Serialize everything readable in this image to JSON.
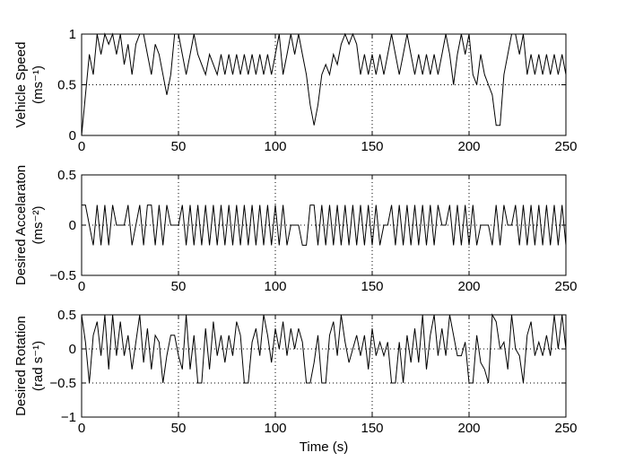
{
  "chart_data": [
    {
      "type": "line",
      "ylabel": [
        "Vehicle Speed",
        "(ms⁻¹)"
      ],
      "xlabel": "",
      "xlim": [
        0,
        250
      ],
      "ylim": [
        0,
        1
      ],
      "xticks": [
        0,
        50,
        100,
        150,
        200,
        250
      ],
      "yticks": [
        0,
        0.5,
        1
      ],
      "ytick_labels": [
        "0",
        "0.5",
        "1"
      ],
      "grid": true,
      "series": [
        {
          "x": [
            0,
            2,
            4,
            6,
            8,
            10,
            12,
            14,
            16,
            18,
            20,
            22,
            24,
            26,
            28,
            30,
            32,
            34,
            36,
            38,
            40,
            42,
            44,
            46,
            48,
            50,
            52,
            54,
            56,
            58,
            60,
            62,
            64,
            66,
            68,
            70,
            72,
            74,
            76,
            78,
            80,
            82,
            84,
            86,
            88,
            90,
            92,
            94,
            96,
            98,
            100,
            102,
            104,
            106,
            108,
            110,
            112,
            114,
            116,
            118,
            120,
            122,
            124,
            126,
            128,
            130,
            132,
            134,
            136,
            138,
            140,
            142,
            144,
            146,
            148,
            150,
            152,
            154,
            156,
            158,
            160,
            162,
            164,
            166,
            168,
            170,
            172,
            174,
            176,
            178,
            180,
            182,
            184,
            186,
            188,
            190,
            192,
            194,
            196,
            198,
            200,
            202,
            204,
            206,
            208,
            210,
            212,
            214,
            216,
            218,
            220,
            222,
            224,
            226,
            228,
            230,
            232,
            234,
            236,
            238,
            240,
            242,
            244,
            246,
            248,
            250
          ],
          "y": [
            0,
            0.4,
            0.8,
            0.6,
            1,
            0.8,
            1,
            0.9,
            1,
            0.8,
            1,
            0.7,
            0.9,
            0.6,
            0.9,
            1,
            1,
            0.8,
            0.6,
            0.9,
            0.8,
            0.6,
            0.4,
            0.6,
            1,
            1,
            0.8,
            0.6,
            0.8,
            1,
            0.8,
            0.7,
            0.6,
            0.8,
            0.7,
            0.6,
            0.8,
            0.6,
            0.8,
            0.6,
            0.8,
            0.6,
            0.8,
            0.6,
            0.8,
            0.6,
            0.8,
            0.6,
            0.8,
            0.6,
            0.8,
            1,
            0.6,
            0.8,
            1,
            0.8,
            1,
            0.8,
            0.6,
            0.3,
            0.1,
            0.3,
            0.6,
            0.7,
            0.6,
            0.8,
            0.7,
            0.9,
            1,
            0.9,
            1,
            0.9,
            0.6,
            0.8,
            0.6,
            0.8,
            0.6,
            0.8,
            0.6,
            0.8,
            1,
            0.8,
            0.6,
            0.8,
            1,
            0.8,
            0.6,
            0.8,
            0.6,
            0.8,
            0.6,
            0.8,
            0.6,
            0.8,
            1,
            0.8,
            0.5,
            0.8,
            1,
            0.8,
            1,
            0.6,
            0.5,
            0.8,
            0.6,
            0.5,
            0.4,
            0.1,
            0.1,
            0.6,
            0.8,
            1,
            1,
            0.8,
            1,
            0.6,
            0.8,
            0.6,
            0.8,
            0.6,
            0.8,
            0.6,
            0.8,
            0.6,
            0.8,
            0.6
          ]
        }
      ]
    },
    {
      "type": "line",
      "ylabel": [
        "Desired Accelaraton",
        "(ms⁻²)"
      ],
      "xlabel": "",
      "xlim": [
        0,
        250
      ],
      "ylim": [
        -0.5,
        0.5
      ],
      "xticks": [
        0,
        50,
        100,
        150,
        200,
        250
      ],
      "yticks": [
        -0.5,
        0,
        0.5
      ],
      "ytick_labels": [
        "−0.5",
        "0",
        "0.5"
      ],
      "grid": true,
      "series": [
        {
          "x": [
            0,
            2,
            4,
            6,
            8,
            10,
            12,
            14,
            16,
            18,
            20,
            22,
            24,
            26,
            28,
            30,
            32,
            34,
            36,
            38,
            40,
            42,
            44,
            46,
            48,
            50,
            52,
            54,
            56,
            58,
            60,
            62,
            64,
            66,
            68,
            70,
            72,
            74,
            76,
            78,
            80,
            82,
            84,
            86,
            88,
            90,
            92,
            94,
            96,
            98,
            100,
            102,
            104,
            106,
            108,
            110,
            112,
            114,
            116,
            118,
            120,
            122,
            124,
            126,
            128,
            130,
            132,
            134,
            136,
            138,
            140,
            142,
            144,
            146,
            148,
            150,
            152,
            154,
            156,
            158,
            160,
            162,
            164,
            166,
            168,
            170,
            172,
            174,
            176,
            178,
            180,
            182,
            184,
            186,
            188,
            190,
            192,
            194,
            196,
            198,
            200,
            202,
            204,
            206,
            208,
            210,
            212,
            214,
            216,
            218,
            220,
            222,
            224,
            226,
            228,
            230,
            232,
            234,
            236,
            238,
            240,
            242,
            244,
            246,
            248,
            250
          ],
          "y": [
            0.2,
            0.2,
            0,
            -0.2,
            0.2,
            -0.2,
            0.2,
            -0.2,
            0.2,
            0,
            0,
            0,
            0.2,
            -0.2,
            0,
            0.2,
            -0.2,
            0.2,
            0.2,
            -0.2,
            0.2,
            -0.2,
            0.2,
            0,
            0,
            0,
            0.2,
            -0.2,
            0.2,
            -0.2,
            0.2,
            -0.2,
            0.2,
            -0.2,
            0.2,
            -0.2,
            0.2,
            -0.2,
            0.2,
            -0.2,
            0.2,
            -0.2,
            0.2,
            -0.2,
            0.2,
            -0.2,
            0.2,
            -0.2,
            0.2,
            -0.2,
            0.2,
            -0.2,
            0.2,
            -0.2,
            0,
            0,
            0,
            -0.2,
            -0.2,
            0.2,
            0.2,
            -0.2,
            0.2,
            -0.2,
            0.2,
            -0.2,
            0.2,
            -0.2,
            0.2,
            -0.2,
            0.2,
            -0.2,
            0.2,
            -0.2,
            0.2,
            -0.2,
            0.2,
            -0.2,
            0,
            0,
            0.2,
            -0.2,
            0.2,
            -0.2,
            0.2,
            -0.2,
            0.2,
            -0.2,
            0.2,
            -0.2,
            0.2,
            -0.2,
            0.2,
            0,
            0,
            0.2,
            -0.2,
            0.2,
            -0.2,
            0.2,
            -0.2,
            0.2,
            -0.2,
            0,
            0,
            0,
            -0.2,
            0.2,
            -0.2,
            0.2,
            0,
            0,
            0.2,
            -0.2,
            0.2,
            -0.2,
            0.2,
            -0.2,
            0.2,
            -0.2,
            0.2,
            -0.2,
            0.2,
            -0.2,
            0.2,
            -0.2
          ]
        }
      ]
    },
    {
      "type": "line",
      "ylabel": [
        "Desired Rotation",
        "(rad s⁻¹)"
      ],
      "xlabel": "Time (s)",
      "xlim": [
        0,
        250
      ],
      "ylim": [
        -1,
        0.5
      ],
      "xticks": [
        0,
        50,
        100,
        150,
        200,
        250
      ],
      "yticks": [
        -1,
        -0.5,
        0,
        0.5
      ],
      "ytick_labels": [
        "−1",
        "−0.5",
        "0",
        "0.5"
      ],
      "grid": true,
      "series": [
        {
          "x": [
            0,
            2,
            4,
            6,
            8,
            10,
            12,
            14,
            16,
            18,
            20,
            22,
            24,
            26,
            28,
            30,
            32,
            34,
            36,
            38,
            40,
            42,
            44,
            46,
            48,
            50,
            52,
            54,
            56,
            58,
            60,
            62,
            64,
            66,
            68,
            70,
            72,
            74,
            76,
            78,
            80,
            82,
            84,
            86,
            88,
            90,
            92,
            94,
            96,
            98,
            100,
            102,
            104,
            106,
            108,
            110,
            112,
            114,
            116,
            118,
            120,
            122,
            124,
            126,
            128,
            130,
            132,
            134,
            136,
            138,
            140,
            142,
            144,
            146,
            148,
            150,
            152,
            154,
            156,
            158,
            160,
            162,
            164,
            166,
            168,
            170,
            172,
            174,
            176,
            178,
            180,
            182,
            184,
            186,
            188,
            190,
            192,
            194,
            196,
            198,
            200,
            202,
            204,
            206,
            208,
            210,
            212,
            214,
            216,
            218,
            220,
            222,
            224,
            226,
            228,
            230,
            232,
            234,
            236,
            238,
            240,
            242,
            244,
            246,
            248,
            250
          ],
          "y": [
            0.5,
            0.1,
            -0.5,
            0.2,
            0.4,
            -0.1,
            0.5,
            -0.3,
            0.5,
            -0.1,
            0.4,
            -0.1,
            0.2,
            -0.3,
            0.1,
            0.5,
            -0.2,
            0.3,
            -0.3,
            0.2,
            0.1,
            -0.5,
            -0.1,
            0.2,
            0.2,
            -0.1,
            -0.3,
            0.5,
            -0.3,
            0.2,
            -0.5,
            -0.5,
            0.3,
            -0.3,
            0.4,
            -0.1,
            0.2,
            -0.2,
            0.2,
            -0.1,
            0.4,
            0.2,
            -0.5,
            -0.5,
            0.1,
            0.3,
            -0.1,
            0.5,
            0.2,
            -0.2,
            0.3,
            0,
            0.4,
            -0.1,
            0.3,
            0,
            0.3,
            0.1,
            -0.5,
            -0.5,
            -0.2,
            0.2,
            -0.5,
            -0.5,
            0.2,
            0.4,
            -0.1,
            0.5,
            0.1,
            -0.2,
            0,
            0.2,
            -0.1,
            0.2,
            -0.3,
            0.3,
            -0.1,
            0.1,
            -0.1,
            0.1,
            -0.5,
            -0.5,
            0.1,
            -0.5,
            0.2,
            -0.2,
            0.3,
            -0.2,
            0.5,
            -0.3,
            0.2,
            0.5,
            -0.1,
            0.3,
            -0.1,
            0.5,
            0.2,
            -0.1,
            -0.1,
            0.1,
            -0.5,
            -0.5,
            0.2,
            -0.2,
            -0.3,
            -0.5,
            0.5,
            0.4,
            0,
            0.1,
            -0.3,
            0.5,
            0,
            -0.1,
            -0.5,
            0.2,
            0.4,
            -0.1,
            0.1,
            -0.1,
            0.2,
            -0.1,
            0.5,
            0,
            0.5,
            0
          ]
        }
      ]
    }
  ]
}
